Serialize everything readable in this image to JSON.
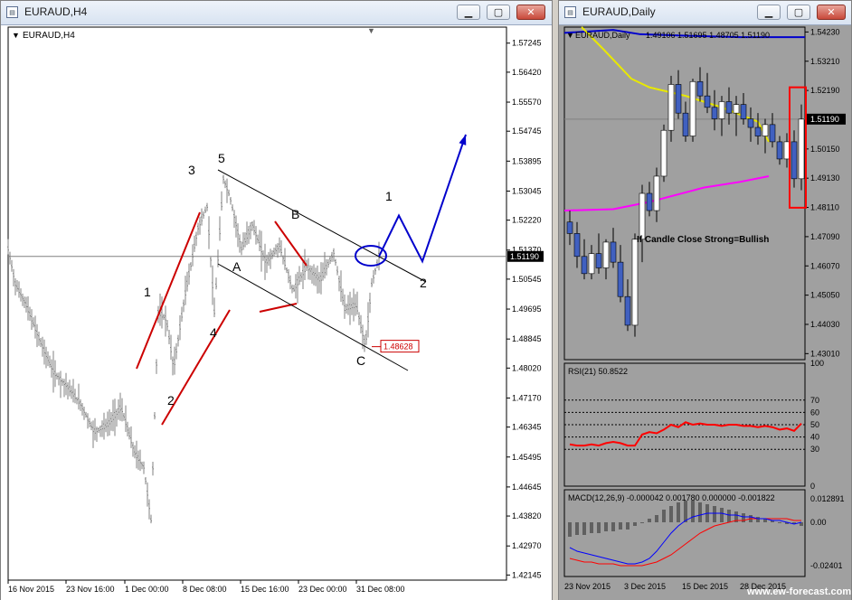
{
  "left_window": {
    "title": "EURAUD,H4",
    "chart_symbol_label": "EURAUD,H4",
    "controls": {
      "minimize": "▁",
      "maximize": "▢",
      "close": "✕"
    }
  },
  "right_window": {
    "title": "EURAUD,Daily",
    "controls": {
      "minimize": "▁",
      "maximize": "▢",
      "close": "✕"
    },
    "watermark": "www.ew-forecast.com"
  },
  "colors": {
    "price": "#808080",
    "projection": "#0000cc",
    "channel_line": "#cc0000",
    "current_price_line": "#808080",
    "daily_bg": "#a0a0a0",
    "ma_fast": "#e8e800",
    "ma_blue": "#0000cc",
    "ma_magenta": "#ff00ff",
    "rsi": "#ff0000",
    "macd_signal": "#ff0000",
    "macd_main": "#0000ff"
  },
  "chart_data": [
    {
      "type": "line",
      "title": "EURAUD,H4",
      "y_ticks": [
        "1.57245",
        "1.56420",
        "1.55570",
        "1.54745",
        "1.53895",
        "1.53045",
        "1.52220",
        "1.51370",
        "1.50545",
        "1.49695",
        "1.48845",
        "1.48020",
        "1.47170",
        "1.46345",
        "1.45495",
        "1.44645",
        "1.43820",
        "1.42970",
        "1.42145"
      ],
      "x_ticks": [
        "16 Nov 2015",
        "23 Nov 16:00",
        "1 Dec 00:00",
        "8 Dec 08:00",
        "15 Dec 16:00",
        "23 Dec 00:00",
        "31 Dec 08:00"
      ],
      "ylim": [
        1.42,
        1.577
      ],
      "current_price": "1.51190",
      "low_marker": "1.48628",
      "wave_labels": [
        "1",
        "2",
        "3",
        "4",
        "5",
        "A",
        "B",
        "C",
        "1",
        "2"
      ],
      "price_path_approx": [
        {
          "t": 0,
          "p": 1.514
        },
        {
          "t": 8,
          "p": 1.504
        },
        {
          "t": 20,
          "p": 1.498
        },
        {
          "t": 35,
          "p": 1.488
        },
        {
          "t": 50,
          "p": 1.479
        },
        {
          "t": 65,
          "p": 1.475
        },
        {
          "t": 80,
          "p": 1.47
        },
        {
          "t": 95,
          "p": 1.462
        },
        {
          "t": 110,
          "p": 1.464
        },
        {
          "t": 125,
          "p": 1.469
        },
        {
          "t": 140,
          "p": 1.456
        },
        {
          "t": 150,
          "p": 1.452
        },
        {
          "t": 158,
          "p": 1.437
        },
        {
          "t": 166,
          "p": 1.496
        },
        {
          "t": 175,
          "p": 1.494
        },
        {
          "t": 183,
          "p": 1.48
        },
        {
          "t": 195,
          "p": 1.5
        },
        {
          "t": 210,
          "p": 1.52
        },
        {
          "t": 220,
          "p": 1.526
        },
        {
          "t": 228,
          "p": 1.496
        },
        {
          "t": 238,
          "p": 1.534
        },
        {
          "t": 245,
          "p": 1.529
        },
        {
          "t": 258,
          "p": 1.514
        },
        {
          "t": 270,
          "p": 1.521
        },
        {
          "t": 285,
          "p": 1.51
        },
        {
          "t": 300,
          "p": 1.515
        },
        {
          "t": 315,
          "p": 1.502
        },
        {
          "t": 330,
          "p": 1.509
        },
        {
          "t": 345,
          "p": 1.505
        },
        {
          "t": 360,
          "p": 1.513
        },
        {
          "t": 372,
          "p": 1.497
        },
        {
          "t": 385,
          "p": 1.498
        },
        {
          "t": 395,
          "p": 1.4863
        },
        {
          "t": 402,
          "p": 1.504
        },
        {
          "t": 410,
          "p": 1.5119
        }
      ],
      "projection_path": [
        {
          "t": 410,
          "p": 1.5119
        },
        {
          "t": 432,
          "p": 1.5235
        },
        {
          "t": 458,
          "p": 1.5105
        },
        {
          "t": 506,
          "p": 1.5465
        }
      ]
    },
    {
      "type": "candlestick",
      "title": "EURAUD,Daily",
      "header_values": "1.49106 1.51695 1.48705 1.51190",
      "y_ticks": [
        "1.54230",
        "1.53210",
        "1.52190",
        "1.51190",
        "1.50150",
        "1.49130",
        "1.48110",
        "1.47090",
        "1.46070",
        "1.45050",
        "1.44030",
        "1.43010"
      ],
      "x_ticks": [
        "23 Nov 2015",
        "3 Dec 2015",
        "15 Dec 2015",
        "28 Dec 2015"
      ],
      "ylim": [
        1.428,
        1.544
      ],
      "annotation": "If Candle Close Strong=Bullish",
      "candles": [
        [
          1.476,
          1.48,
          1.468,
          1.472
        ],
        [
          1.472,
          1.476,
          1.46,
          1.464
        ],
        [
          1.464,
          1.47,
          1.456,
          1.458
        ],
        [
          1.458,
          1.468,
          1.456,
          1.465
        ],
        [
          1.465,
          1.472,
          1.458,
          1.46
        ],
        [
          1.46,
          1.47,
          1.456,
          1.469
        ],
        [
          1.469,
          1.474,
          1.46,
          1.462
        ],
        [
          1.462,
          1.468,
          1.448,
          1.45
        ],
        [
          1.45,
          1.456,
          1.438,
          1.44
        ],
        [
          1.44,
          1.472,
          1.436,
          1.47
        ],
        [
          1.47,
          1.489,
          1.462,
          1.486
        ],
        [
          1.486,
          1.49,
          1.478,
          1.48
        ],
        [
          1.48,
          1.495,
          1.476,
          1.492
        ],
        [
          1.492,
          1.51,
          1.49,
          1.508
        ],
        [
          1.508,
          1.527,
          1.504,
          1.524
        ],
        [
          1.524,
          1.529,
          1.512,
          1.514
        ],
        [
          1.514,
          1.518,
          1.504,
          1.506
        ],
        [
          1.506,
          1.526,
          1.504,
          1.525
        ],
        [
          1.525,
          1.53,
          1.518,
          1.52
        ],
        [
          1.52,
          1.528,
          1.514,
          1.516
        ],
        [
          1.516,
          1.522,
          1.508,
          1.512
        ],
        [
          1.512,
          1.52,
          1.506,
          1.518
        ],
        [
          1.518,
          1.523,
          1.51,
          1.514
        ],
        [
          1.514,
          1.52,
          1.506,
          1.517
        ],
        [
          1.517,
          1.521,
          1.51,
          1.512
        ],
        [
          1.512,
          1.516,
          1.504,
          1.509
        ],
        [
          1.509,
          1.514,
          1.503,
          1.506
        ],
        [
          1.506,
          1.512,
          1.5,
          1.51
        ],
        [
          1.51,
          1.514,
          1.502,
          1.504
        ],
        [
          1.504,
          1.506,
          1.496,
          1.498
        ],
        [
          1.498,
          1.507,
          1.495,
          1.504
        ],
        [
          1.504,
          1.508,
          1.488,
          1.4911
        ],
        [
          1.4911,
          1.517,
          1.4871,
          1.5119
        ]
      ],
      "sub_panels": [
        {
          "type": "line",
          "title": "RSI(21) 50.8522",
          "y_ticks": [
            "100",
            "70",
            "60",
            "50",
            "40",
            "30",
            "0"
          ],
          "levels": [
            70,
            60,
            50,
            40,
            30
          ],
          "values": [
            34,
            33,
            33,
            34,
            33,
            35,
            36,
            35,
            33,
            33,
            42,
            44,
            43,
            46,
            50,
            48,
            52,
            50,
            51,
            50,
            50,
            49,
            50,
            50,
            49,
            49,
            48,
            49,
            48,
            46,
            47,
            45,
            51
          ]
        },
        {
          "type": "line",
          "title": "MACD(12,26,9) -0.000042 0.001780 0.000000 -0.001822",
          "y_ticks": [
            "0.012891",
            "0.00",
            "-0.02401"
          ],
          "histogram": [
            -0.008,
            -0.007,
            -0.007,
            -0.006,
            -0.006,
            -0.005,
            -0.005,
            -0.004,
            -0.004,
            -0.002,
            0.0,
            0.002,
            0.004,
            0.007,
            0.009,
            0.011,
            0.012,
            0.012,
            0.011,
            0.01,
            0.009,
            0.008,
            0.007,
            0.006,
            0.005,
            0.004,
            0.003,
            0.002,
            0.001,
            0.0,
            -0.001,
            -0.001,
            -0.002
          ],
          "main": [
            -0.014,
            -0.016,
            -0.017,
            -0.018,
            -0.019,
            -0.02,
            -0.021,
            -0.022,
            -0.023,
            -0.023,
            -0.022,
            -0.02,
            -0.016,
            -0.011,
            -0.006,
            -0.002,
            0.001,
            0.003,
            0.004,
            0.005,
            0.005,
            0.005,
            0.004,
            0.004,
            0.003,
            0.003,
            0.002,
            0.002,
            0.001,
            0.001,
            0.0,
            -0.001,
            0.0
          ],
          "signal": [
            -0.02,
            -0.021,
            -0.022,
            -0.022,
            -0.023,
            -0.023,
            -0.023,
            -0.024,
            -0.024,
            -0.024,
            -0.024,
            -0.023,
            -0.022,
            -0.02,
            -0.018,
            -0.015,
            -0.012,
            -0.009,
            -0.006,
            -0.004,
            -0.002,
            -0.001,
            0.0,
            0.001,
            0.001,
            0.002,
            0.002,
            0.002,
            0.002,
            0.002,
            0.002,
            0.001,
            0.001
          ]
        }
      ]
    }
  ]
}
